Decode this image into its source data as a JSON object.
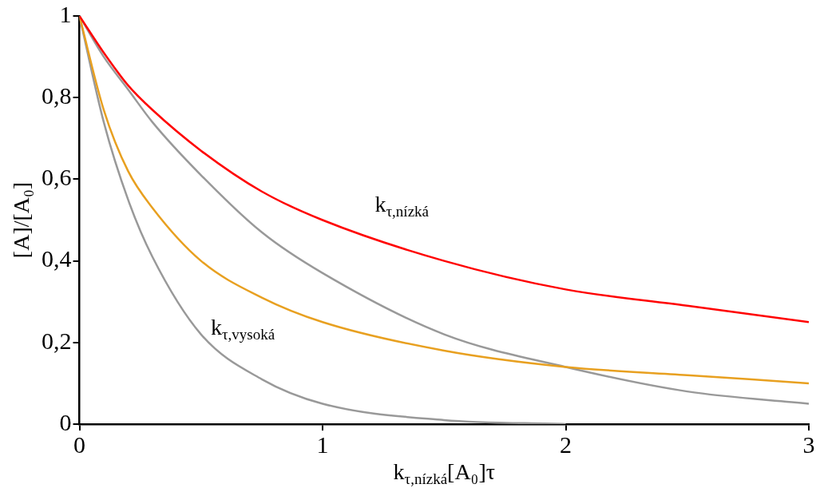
{
  "chart_data": {
    "type": "line",
    "xlabel": "k$_{τ,nízká}$[A₀]τ",
    "ylabel": "[A]/[A₀]",
    "xlim": [
      0,
      3
    ],
    "xticks": [
      0,
      1,
      2,
      3
    ],
    "ylim": [
      0,
      1
    ],
    "yticks": [
      0,
      {
        "value": 0.2,
        "label": "0,2"
      },
      {
        "value": 0.4,
        "label": "0,4"
      },
      {
        "value": 0.6,
        "label": "0,6"
      },
      {
        "value": 0.8,
        "label": "0,8"
      },
      1
    ],
    "grid": false,
    "legend": false,
    "marker": "none",
    "line_style": "solid",
    "x": [
      0,
      0.1,
      0.2,
      0.3,
      0.5,
      0.75,
      1,
      1.5,
      2,
      2.5,
      3
    ],
    "series": [
      {
        "color": "#ff0000",
        "values": [
          1,
          0.91,
          0.83,
          0.77,
          0.67,
          0.57,
          0.5,
          0.4,
          0.33,
          0.29,
          0.25
        ]
      },
      {
        "color": "#e8a020",
        "values": [
          1,
          0.77,
          0.62,
          0.53,
          0.4,
          0.31,
          0.25,
          0.18,
          0.14,
          0.12,
          0.1
        ]
      },
      {
        "color": "#999999",
        "values": [
          1,
          0.9,
          0.82,
          0.74,
          0.61,
          0.47,
          0.37,
          0.22,
          0.14,
          0.08,
          0.05
        ]
      },
      {
        "color": "#999999",
        "x": [
          0,
          0.1,
          0.2,
          0.3,
          0.5,
          0.75,
          1,
          1.5,
          2
        ],
        "values": [
          1,
          0.74,
          0.55,
          0.41,
          0.22,
          0.11,
          0.05,
          0.01,
          0
        ]
      }
    ],
    "annotations": [
      "k$_{τ,nízká}$",
      "k$_{τ,vysoká}$"
    ]
  }
}
